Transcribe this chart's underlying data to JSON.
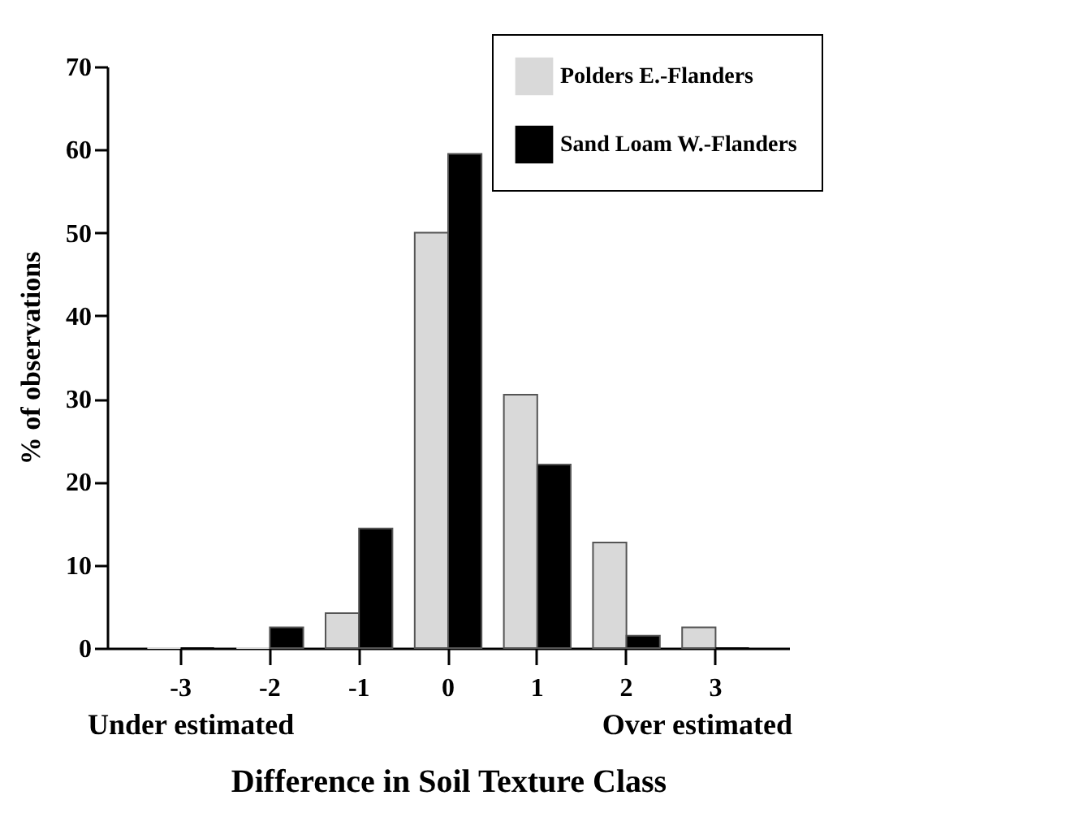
{
  "chart_data": {
    "type": "bar",
    "xlabel": "Difference in Soil Texture Class",
    "ylabel": "% of observations",
    "categories": [
      "-3",
      "-2",
      "-1",
      "0",
      "1",
      "2",
      "3"
    ],
    "series": [
      {
        "name": "Polders E.-Flanders",
        "color": "#d9d9d9",
        "values": [
          0,
          0,
          4.2,
          50,
          30.5,
          12.7,
          2.5
        ]
      },
      {
        "name": "Sand Loam W.-Flanders",
        "color": "#000000",
        "values": [
          0,
          2.5,
          14.4,
          59.5,
          22.1,
          1.5,
          0
        ]
      }
    ],
    "ylim": [
      0,
      70
    ],
    "yticks": [
      0,
      10,
      20,
      30,
      40,
      50,
      60,
      70
    ],
    "grid": false,
    "legend": "top right",
    "annotations": [
      "Under estimated",
      "Over estimated"
    ]
  }
}
